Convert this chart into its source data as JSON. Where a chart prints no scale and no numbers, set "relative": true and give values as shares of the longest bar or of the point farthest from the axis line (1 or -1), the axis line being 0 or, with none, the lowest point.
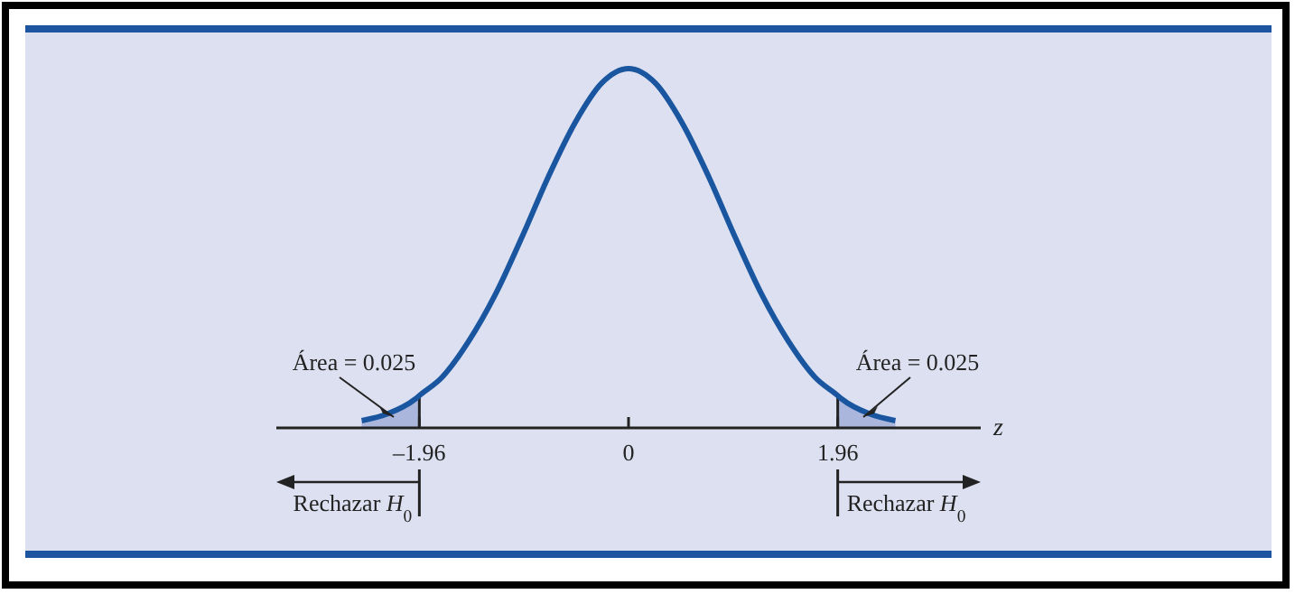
{
  "chart_data": {
    "type": "line",
    "relative": true,
    "xlabel": "z",
    "x": [
      -2.5,
      -2.25,
      -2,
      -1.96,
      -1.75,
      -1.5,
      -1.25,
      -1,
      -0.75,
      -0.5,
      -0.25,
      0,
      0.25,
      0.5,
      0.75,
      1,
      1.25,
      1.5,
      1.75,
      1.96,
      2,
      2.25,
      2.5
    ],
    "series": [
      {
        "type": "area",
        "color": "#aab6dc",
        "x": [
          -2.5,
          -2.25,
          -2,
          -1.96
        ],
        "values": [
          0.02,
          0.04,
          0.08,
          0.09
        ]
      },
      {
        "type": "area",
        "color": "#aab6dc",
        "x": [
          1.96,
          2,
          2.25,
          2.5
        ],
        "values": [
          0.09,
          0.08,
          0.04,
          0.02
        ]
      },
      {
        "color": "#1a56a0",
        "values": [
          0.02,
          0.04,
          0.08,
          0.09,
          0.14,
          0.24,
          0.37,
          0.53,
          0.7,
          0.85,
          0.96,
          1,
          0.96,
          0.85,
          0.7,
          0.53,
          0.37,
          0.24,
          0.14,
          0.09,
          0.08,
          0.04,
          0.02
        ]
      }
    ],
    "xlim": [
      -3.3,
      3.3
    ],
    "xticks": [
      {
        "value": -1.96,
        "label": "–1.96"
      },
      0,
      1.96
    ],
    "annotations": [
      {
        "text": "Área = 0.025",
        "x": -2.2,
        "y": 0.02
      },
      {
        "text": "Área = 0.025",
        "x": 2.2,
        "y": 0.02
      },
      "Rechazar H$_{0}$",
      "Rechazar H$_{0}$"
    ],
    "marker": "none",
    "line_style": "solid"
  }
}
